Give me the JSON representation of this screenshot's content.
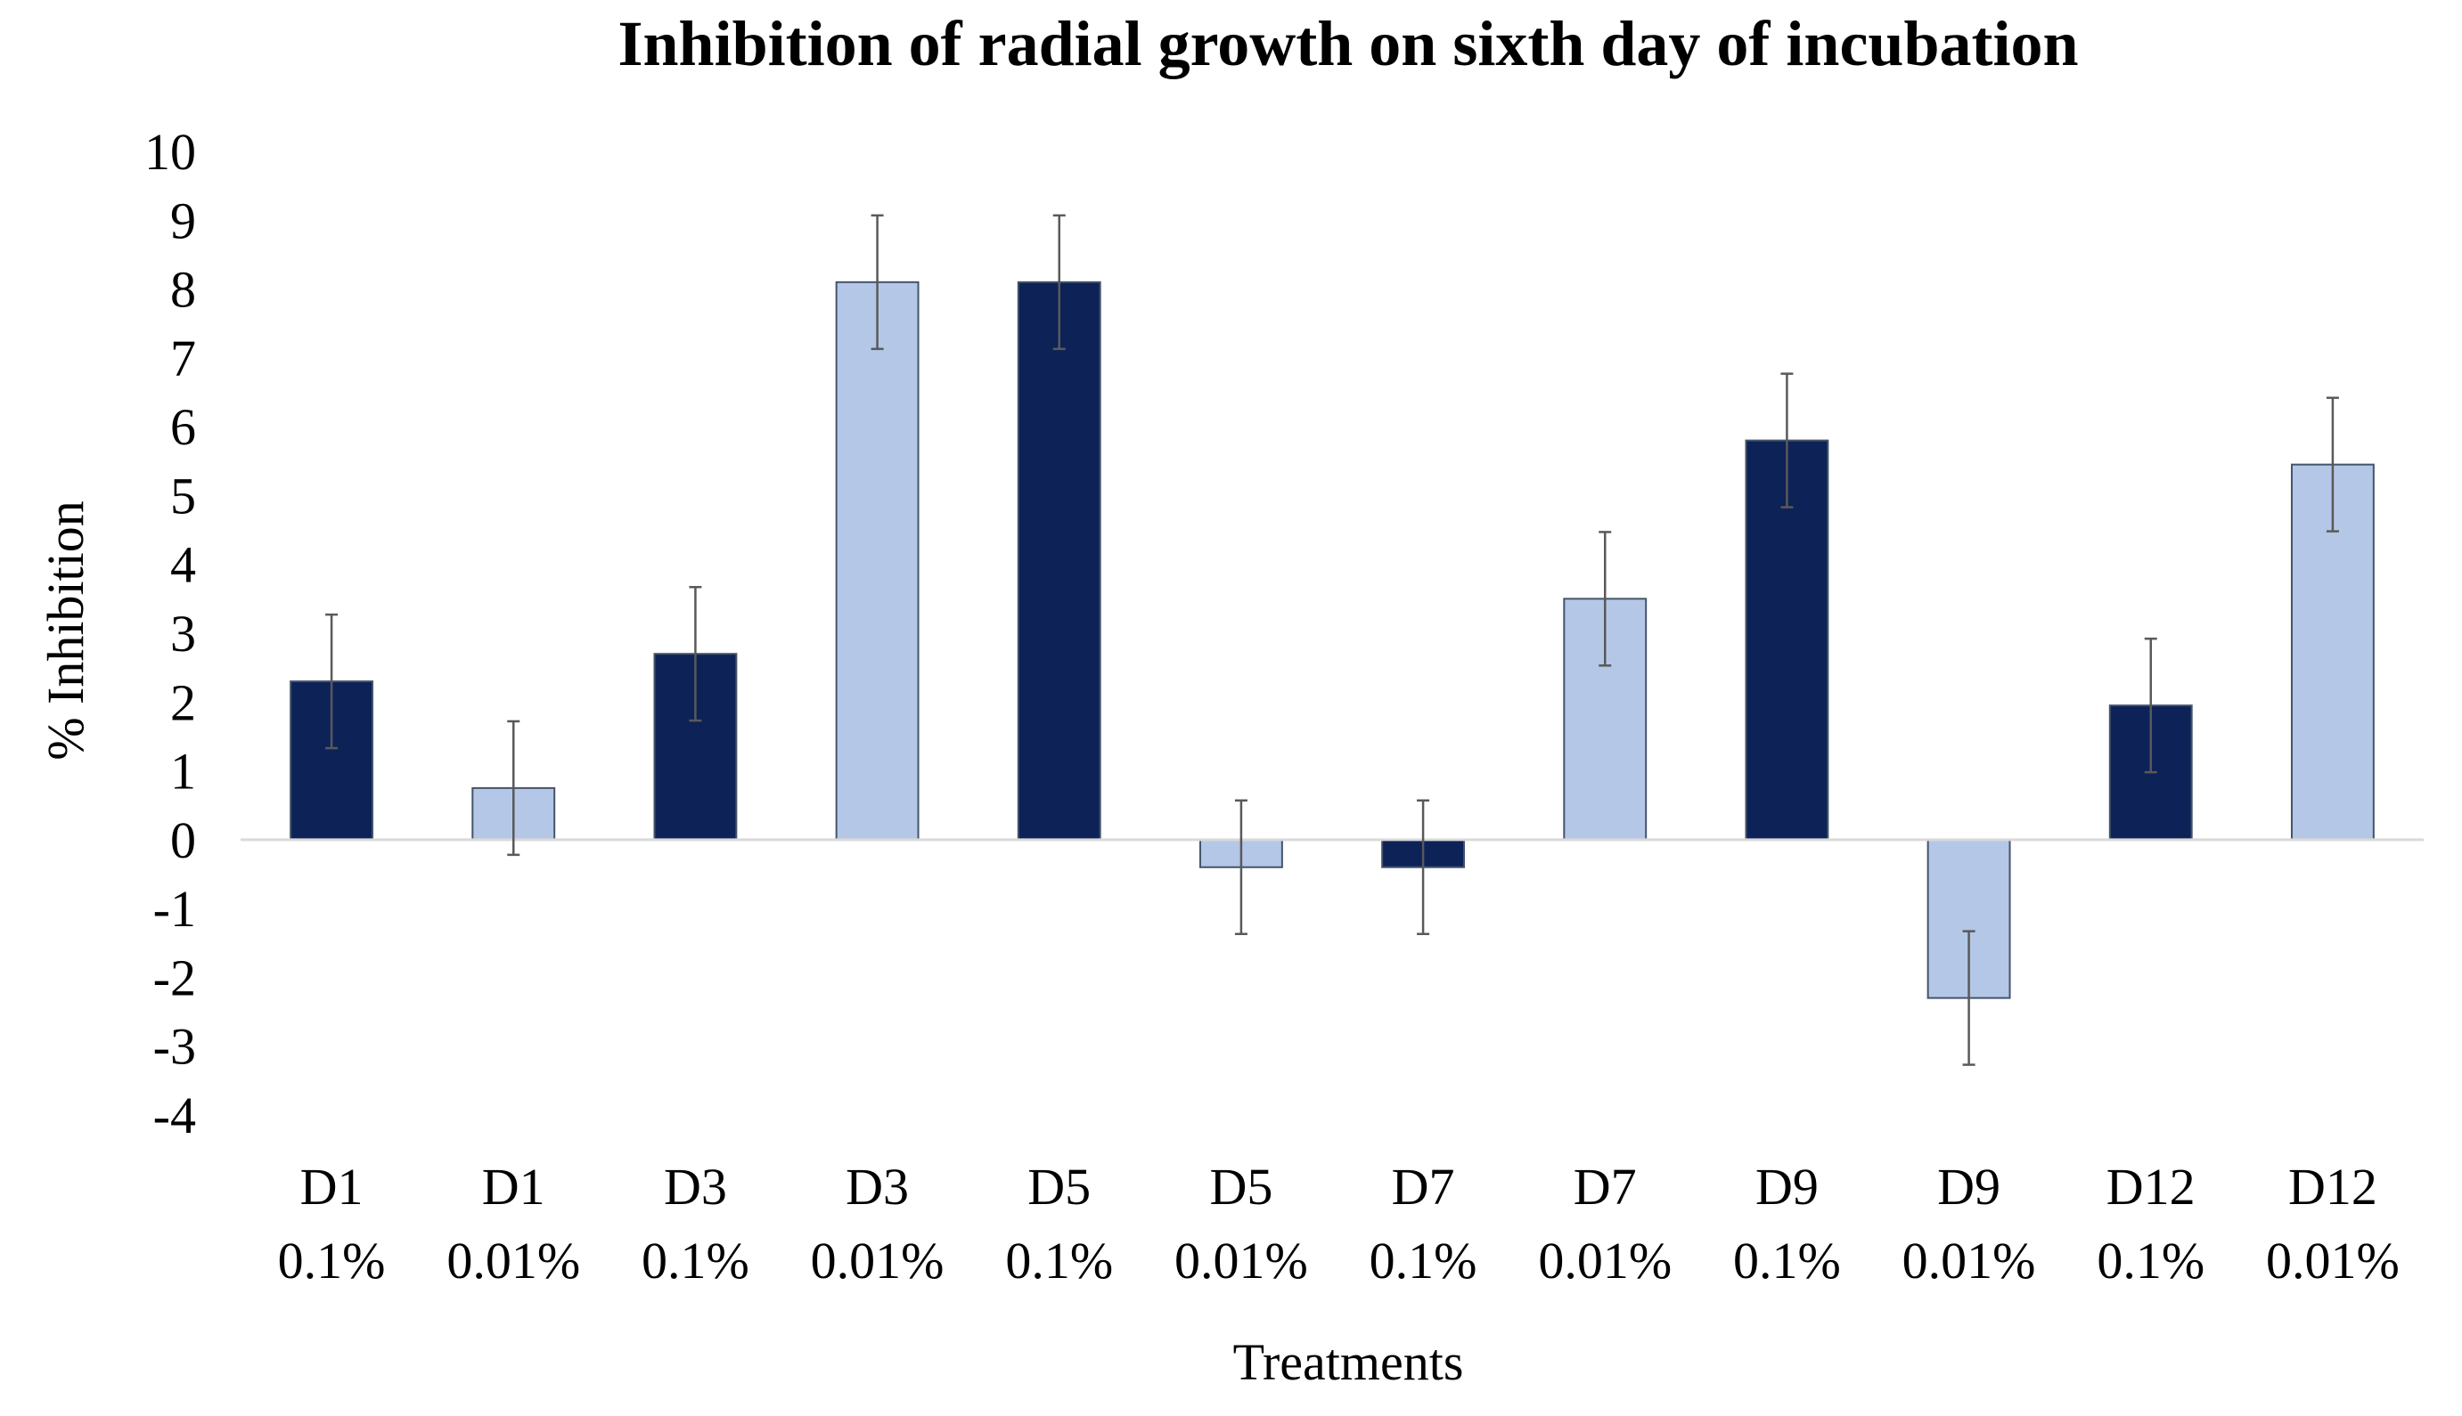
{
  "chart_data": {
    "type": "bar",
    "title": "Inhibition of radial growth on sixth day of incubation",
    "xlabel": "Treatments",
    "ylabel": "% Inhibition",
    "ylim": [
      -4,
      10
    ],
    "yticks": [
      10,
      9,
      8,
      7,
      6,
      5,
      4,
      3,
      2,
      1,
      0,
      -1,
      -2,
      -3,
      -4
    ],
    "grid": false,
    "legend": "none",
    "categories": [
      {
        "line1": "D1",
        "line2": "0.1%"
      },
      {
        "line1": "D1",
        "line2": "0.01%"
      },
      {
        "line1": "D3",
        "line2": "0.1%"
      },
      {
        "line1": "D3",
        "line2": "0.01%"
      },
      {
        "line1": "D5",
        "line2": "0.1%"
      },
      {
        "line1": "D5",
        "line2": "0.01%"
      },
      {
        "line1": "D7",
        "line2": "0.1%"
      },
      {
        "line1": "D7",
        "line2": "0.01%"
      },
      {
        "line1": "D9",
        "line2": "0.1%"
      },
      {
        "line1": "D9",
        "line2": "0.01%"
      },
      {
        "line1": "D12",
        "line2": "0.1%"
      },
      {
        "line1": "D12",
        "line2": "0.01%"
      }
    ],
    "values": [
      2.3,
      0.75,
      2.7,
      8.1,
      8.1,
      -0.4,
      -0.4,
      3.5,
      5.8,
      -2.3,
      1.95,
      5.45
    ],
    "errors": [
      0.97,
      0.97,
      0.97,
      0.97,
      0.97,
      0.97,
      0.97,
      0.97,
      0.97,
      0.97,
      0.97,
      0.97
    ],
    "bar_colors": [
      "#0d2257",
      "#b4c7e7",
      "#0d2257",
      "#b4c7e7",
      "#0d2257",
      "#b4c7e7",
      "#0d2257",
      "#b4c7e7",
      "#0d2257",
      "#b4c7e7",
      "#0d2257",
      "#b4c7e7"
    ],
    "colors": {
      "dark": "#0d2257",
      "light": "#b4c7e7",
      "bar_outline": "#44546a",
      "zero_line": "#d9d9d9",
      "error_bar": "#595959"
    }
  }
}
